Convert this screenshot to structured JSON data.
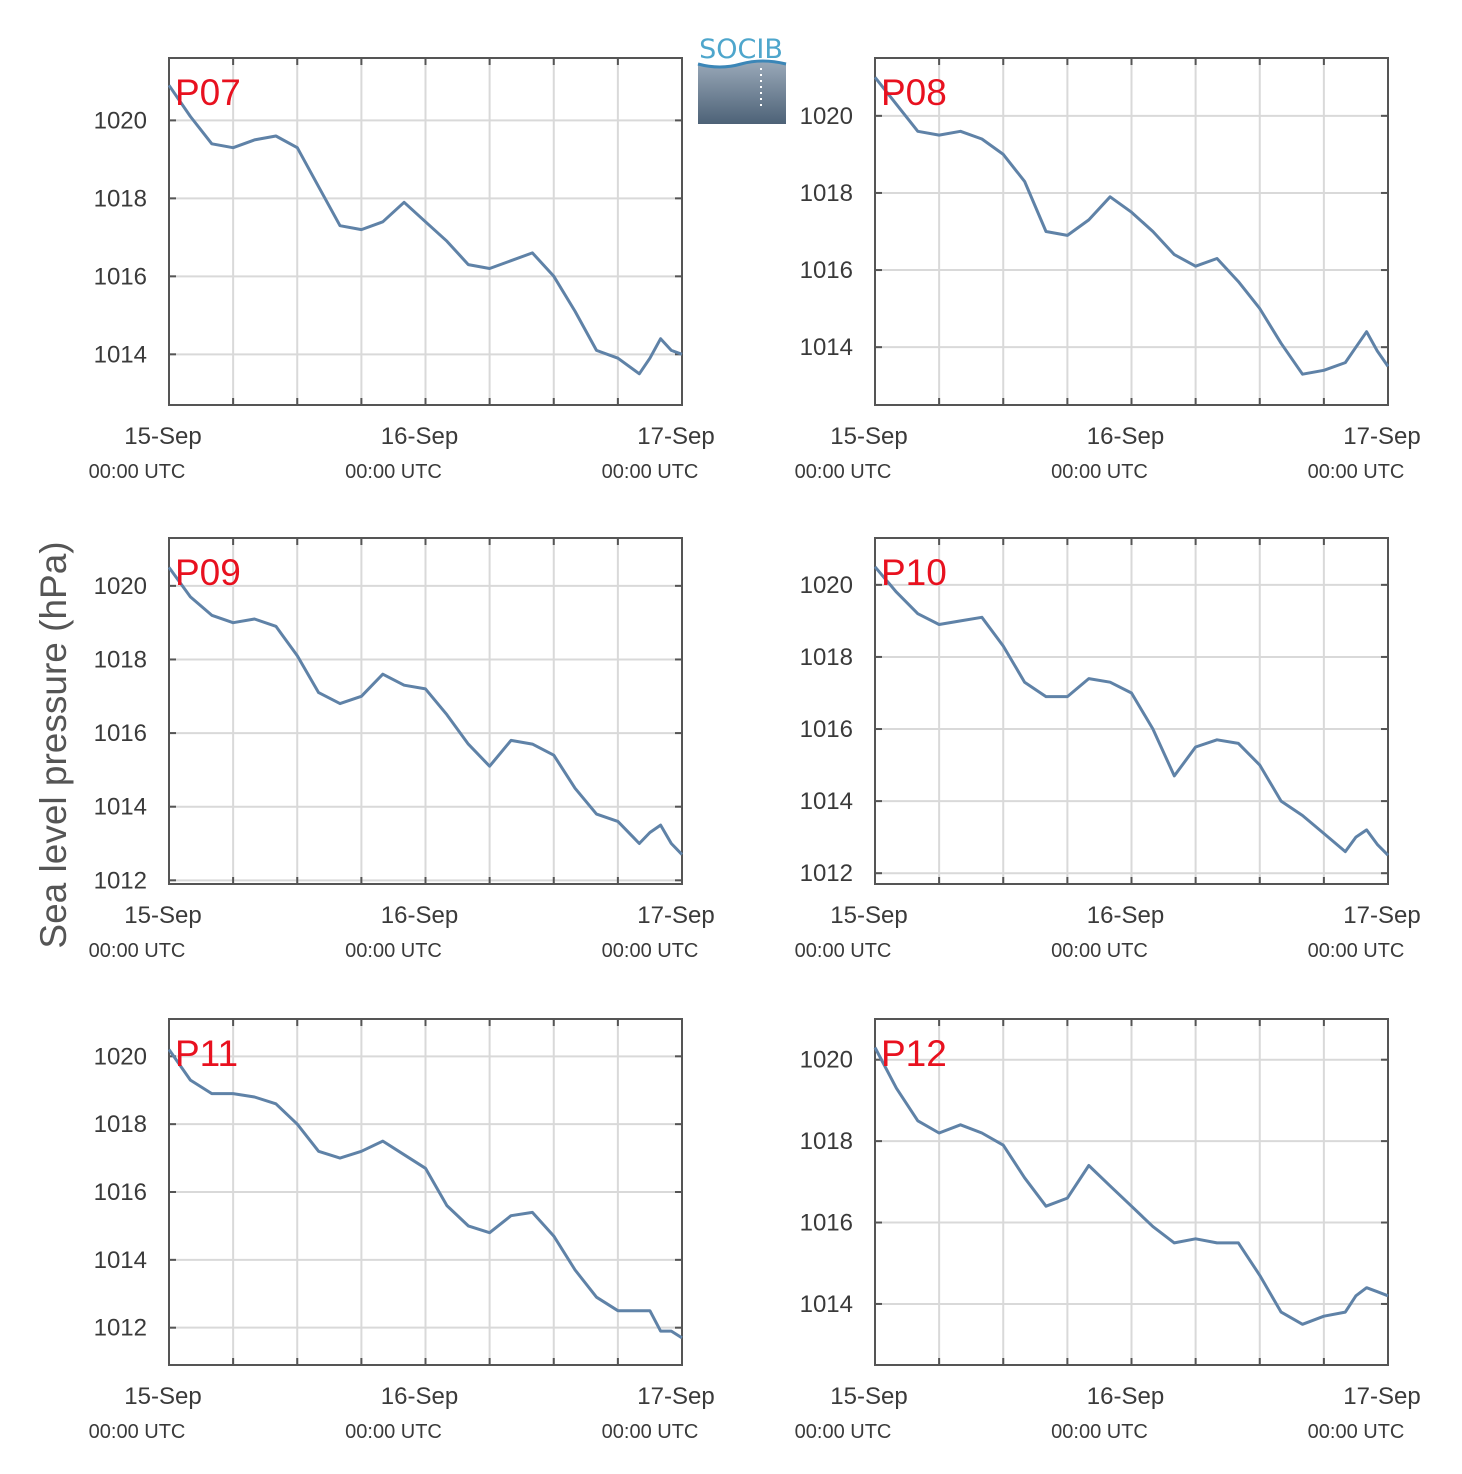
{
  "logo": {
    "text": "SOCIB"
  },
  "chart_data": {
    "type": "line",
    "ylabel": "Sea level pressure (hPa)",
    "x_ticks": [
      {
        "label": "15-Sep",
        "sub": "00:00 UTC",
        "hours": 0
      },
      {
        "label": "16-Sep",
        "sub": "00:00 UTC",
        "hours": 24
      },
      {
        "label": "17-Sep",
        "sub": "00:00 UTC",
        "hours": 48
      }
    ],
    "x_unit": "hours since 15-Sep 00:00 UTC",
    "xlim": [
      0,
      48
    ],
    "grid": true,
    "line_color": "#5f82a7",
    "label_color": "#e8111f",
    "panels": [
      {
        "name": "P07",
        "ylim": [
          1012.7,
          1021.6
        ],
        "yticks": [
          1014,
          1016,
          1018,
          1020
        ],
        "x": [
          0,
          2,
          4,
          6,
          8,
          10,
          12,
          14,
          16,
          18,
          20,
          22,
          24,
          26,
          28,
          30,
          32,
          34,
          36,
          38,
          40,
          42,
          44,
          45,
          46,
          47,
          48
        ],
        "y": [
          1020.9,
          1020.1,
          1019.4,
          1019.3,
          1019.5,
          1019.6,
          1019.3,
          1018.3,
          1017.3,
          1017.2,
          1017.4,
          1017.9,
          1017.4,
          1016.9,
          1016.3,
          1016.2,
          1016.4,
          1016.6,
          1016.0,
          1015.1,
          1014.1,
          1013.9,
          1013.5,
          1013.9,
          1014.4,
          1014.1,
          1014.0
        ]
      },
      {
        "name": "P08",
        "ylim": [
          1012.5,
          1021.5
        ],
        "yticks": [
          1014,
          1016,
          1018,
          1020
        ],
        "x": [
          0,
          2,
          4,
          6,
          8,
          10,
          12,
          14,
          16,
          18,
          20,
          22,
          24,
          26,
          28,
          30,
          32,
          34,
          36,
          38,
          40,
          42,
          44,
          45,
          46,
          47,
          48
        ],
        "y": [
          1021.0,
          1020.3,
          1019.6,
          1019.5,
          1019.6,
          1019.4,
          1019.0,
          1018.3,
          1017.0,
          1016.9,
          1017.3,
          1017.9,
          1017.5,
          1017.0,
          1016.4,
          1016.1,
          1016.3,
          1015.7,
          1015.0,
          1014.1,
          1013.3,
          1013.4,
          1013.6,
          1014.0,
          1014.4,
          1013.9,
          1013.5
        ]
      },
      {
        "name": "P09",
        "ylim": [
          1011.9,
          1021.3
        ],
        "yticks": [
          1012,
          1014,
          1016,
          1018,
          1020
        ],
        "x": [
          0,
          2,
          4,
          6,
          8,
          10,
          12,
          14,
          16,
          18,
          20,
          22,
          24,
          26,
          28,
          30,
          32,
          34,
          36,
          38,
          40,
          42,
          44,
          45,
          46,
          47,
          48
        ],
        "y": [
          1020.5,
          1019.7,
          1019.2,
          1019.0,
          1019.1,
          1018.9,
          1018.1,
          1017.1,
          1016.8,
          1017.0,
          1017.6,
          1017.3,
          1017.2,
          1016.5,
          1015.7,
          1015.1,
          1015.8,
          1015.7,
          1015.4,
          1014.5,
          1013.8,
          1013.6,
          1013.0,
          1013.3,
          1013.5,
          1013.0,
          1012.7
        ]
      },
      {
        "name": "P10",
        "ylim": [
          1011.7,
          1021.3
        ],
        "yticks": [
          1012,
          1014,
          1016,
          1018,
          1020
        ],
        "x": [
          0,
          2,
          4,
          6,
          8,
          10,
          12,
          14,
          16,
          18,
          20,
          22,
          24,
          26,
          28,
          30,
          32,
          34,
          36,
          38,
          40,
          42,
          44,
          45,
          46,
          47,
          48
        ],
        "y": [
          1020.5,
          1019.8,
          1019.2,
          1018.9,
          1019.0,
          1019.1,
          1018.3,
          1017.3,
          1016.9,
          1016.9,
          1017.4,
          1017.3,
          1017.0,
          1016.0,
          1014.7,
          1015.5,
          1015.7,
          1015.6,
          1015.0,
          1014.0,
          1013.6,
          1013.1,
          1012.6,
          1013.0,
          1013.2,
          1012.8,
          1012.5
        ]
      },
      {
        "name": "P11",
        "ylim": [
          1010.9,
          1021.1
        ],
        "yticks": [
          1012,
          1014,
          1016,
          1018,
          1020
        ],
        "x": [
          0,
          2,
          4,
          6,
          8,
          10,
          12,
          14,
          16,
          18,
          20,
          22,
          24,
          26,
          28,
          30,
          32,
          34,
          36,
          38,
          40,
          42,
          44,
          45,
          46,
          47,
          48
        ],
        "y": [
          1020.2,
          1019.3,
          1018.9,
          1018.9,
          1018.8,
          1018.6,
          1018.0,
          1017.2,
          1017.0,
          1017.2,
          1017.5,
          1017.1,
          1016.7,
          1015.6,
          1015.0,
          1014.8,
          1015.3,
          1015.4,
          1014.7,
          1013.7,
          1012.9,
          1012.5,
          1012.5,
          1012.5,
          1011.9,
          1011.9,
          1011.7
        ]
      },
      {
        "name": "P12",
        "ylim": [
          1012.5,
          1021.0
        ],
        "yticks": [
          1014,
          1016,
          1018,
          1020
        ],
        "x": [
          0,
          2,
          4,
          6,
          8,
          10,
          12,
          14,
          16,
          18,
          20,
          22,
          24,
          26,
          28,
          30,
          32,
          34,
          36,
          38,
          40,
          42,
          44,
          45,
          46,
          47,
          48
        ],
        "y": [
          1020.3,
          1019.3,
          1018.5,
          1018.2,
          1018.4,
          1018.2,
          1017.9,
          1017.1,
          1016.4,
          1016.6,
          1017.4,
          1016.9,
          1016.4,
          1015.9,
          1015.5,
          1015.6,
          1015.5,
          1015.5,
          1014.7,
          1013.8,
          1013.5,
          1013.7,
          1013.8,
          1014.2,
          1014.4,
          1014.3,
          1014.2
        ]
      }
    ]
  }
}
